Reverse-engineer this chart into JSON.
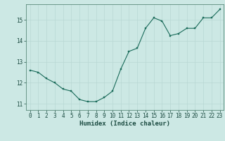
{
  "x": [
    0,
    1,
    2,
    3,
    4,
    5,
    6,
    7,
    8,
    9,
    10,
    11,
    12,
    13,
    14,
    15,
    16,
    17,
    18,
    19,
    20,
    21,
    22,
    23
  ],
  "y": [
    12.6,
    12.5,
    12.2,
    12.0,
    11.7,
    11.6,
    11.2,
    11.1,
    11.1,
    11.3,
    11.6,
    12.65,
    13.5,
    13.65,
    14.6,
    15.1,
    14.95,
    14.25,
    14.35,
    14.6,
    14.6,
    15.1,
    15.1,
    15.5
  ],
  "line_color": "#1a6b5a",
  "marker_color": "#1a6b5a",
  "bg_color": "#cce8e4",
  "grid_color": "#b8d8d4",
  "xlabel": "Humidex (Indice chaleur)",
  "ylim": [
    10.7,
    15.75
  ],
  "xlim": [
    -0.5,
    23.5
  ],
  "yticks": [
    11,
    12,
    13,
    14,
    15
  ],
  "xticks": [
    0,
    1,
    2,
    3,
    4,
    5,
    6,
    7,
    8,
    9,
    10,
    11,
    12,
    13,
    14,
    15,
    16,
    17,
    18,
    19,
    20,
    21,
    22,
    23
  ],
  "label_fontsize": 6.5,
  "tick_fontsize": 5.5
}
